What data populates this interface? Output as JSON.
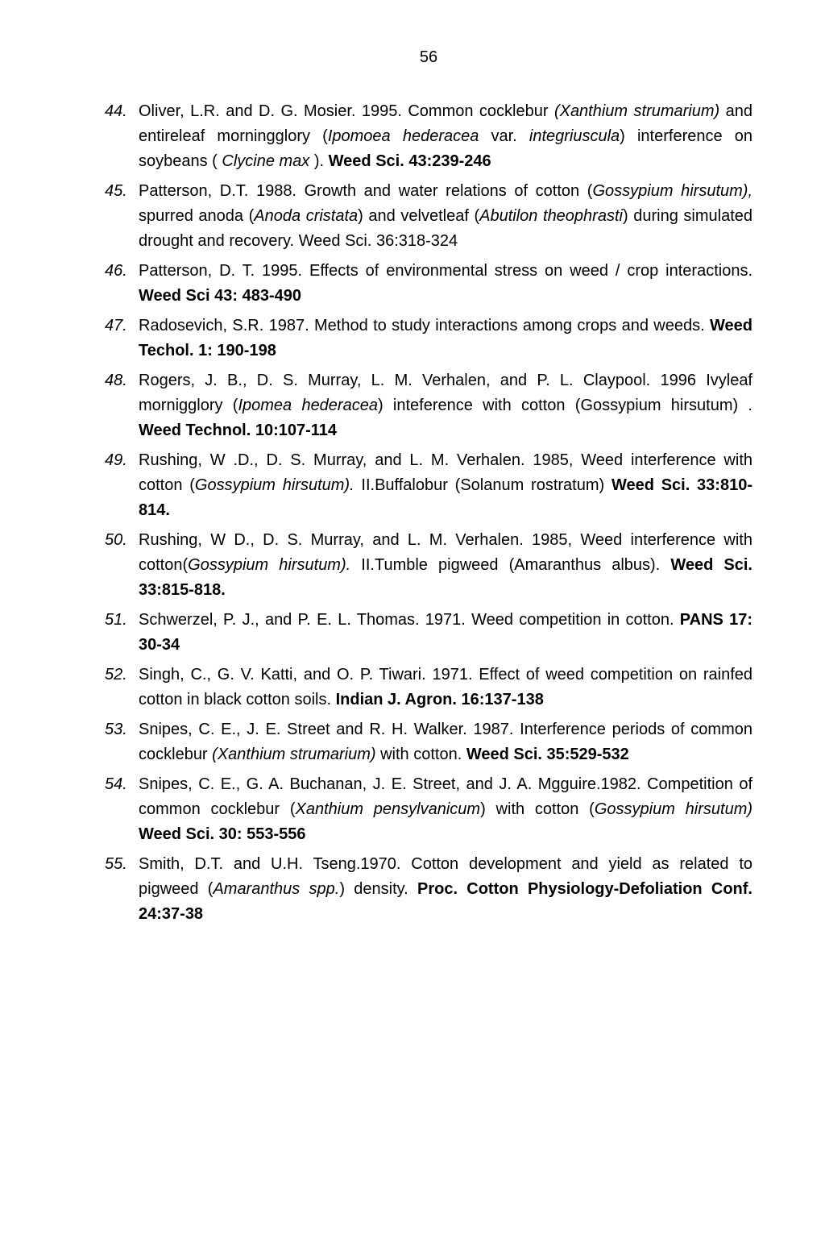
{
  "page_number": "56",
  "colors": {
    "background": "#ffffff",
    "text": "#000000"
  },
  "typography": {
    "font_family": "Arial, Helvetica, sans-serif",
    "body_fontsize": 20,
    "line_height": 1.55
  },
  "references": [
    {
      "number": "44.",
      "segments": [
        {
          "text": "Oliver, L.R. and D. G. Mosier. 1995. Common cocklebur ",
          "style": "normal"
        },
        {
          "text": "(Xanthium strumarium)",
          "style": "italic"
        },
        {
          "text": " and entireleaf morningglory (",
          "style": "normal"
        },
        {
          "text": "Ipomoea hederacea",
          "style": "italic"
        },
        {
          "text": " var. ",
          "style": "normal"
        },
        {
          "text": "integriuscula",
          "style": "italic"
        },
        {
          "text": ") interference on soybeans ( ",
          "style": "normal"
        },
        {
          "text": "Clycine max",
          "style": "italic"
        },
        {
          "text": " ). ",
          "style": "normal"
        },
        {
          "text": "Weed Sci. 43:239-246",
          "style": "bold"
        }
      ]
    },
    {
      "number": "45.",
      "segments": [
        {
          "text": "Patterson, D.T. 1988. Growth and water relations of cotton (",
          "style": "normal"
        },
        {
          "text": "Gossypium hirsutum),",
          "style": "italic"
        },
        {
          "text": " spurred anoda (",
          "style": "normal"
        },
        {
          "text": "Anoda cristata",
          "style": "italic"
        },
        {
          "text": ") and velvetleaf (",
          "style": "normal"
        },
        {
          "text": "Abutilon theophrasti",
          "style": "italic"
        },
        {
          "text": ") during simulated drought and recovery. Weed Sci. 36:318-324",
          "style": "normal"
        }
      ]
    },
    {
      "number": "46.",
      "segments": [
        {
          "text": "Patterson, D. T. 1995. Effects of environmental stress on weed / crop interactions. ",
          "style": "normal"
        },
        {
          "text": "Weed Sci 43: 483-490",
          "style": "bold"
        }
      ]
    },
    {
      "number": "47.",
      "segments": [
        {
          "text": "Radosevich, S.R. 1987. Method to study interactions among crops and weeds. ",
          "style": "normal"
        },
        {
          "text": "Weed Techol. 1: 190-198",
          "style": "bold"
        }
      ]
    },
    {
      "number": "48.",
      "segments": [
        {
          "text": "Rogers, J. B., D. S. Murray, L. M. Verhalen, and P. L. Claypool. 1996 Ivyleaf mornigglory (",
          "style": "normal"
        },
        {
          "text": "Ipomea hederacea",
          "style": "italic"
        },
        {
          "text": ") inteference with cotton (Gossypium hirsutum) . ",
          "style": "normal"
        },
        {
          "text": "Weed Technol. 10:107-114",
          "style": "bold"
        }
      ]
    },
    {
      "number": "49.",
      "segments": [
        {
          "text": "Rushing, W .D., D. S.  Murray, and L. M. Verhalen. 1985, Weed interference with cotton (",
          "style": "normal"
        },
        {
          "text": "Gossypium hirsutum).",
          "style": "italic"
        },
        {
          "text": " II.Buffalobur (Solanum rostratum) ",
          "style": "normal"
        },
        {
          "text": "Weed Sci. 33:810-814.",
          "style": "bold"
        }
      ]
    },
    {
      "number": "50.",
      "segments": [
        {
          "text": "Rushing, W D., D. S.  Murray, and L. M. Verhalen. 1985, Weed interference with cotton(",
          "style": "normal"
        },
        {
          "text": "Gossypium hirsutum).",
          "style": "italic"
        },
        {
          "text": " II.Tumble pigweed (Amaranthus albus). ",
          "style": "normal"
        },
        {
          "text": "Weed Sci. 33:815-818.",
          "style": "bold"
        }
      ]
    },
    {
      "number": "51.",
      "segments": [
        {
          "text": "Schwerzel, P. J., and P. E. L. Thomas. 1971. Weed competition in cotton. ",
          "style": "normal"
        },
        {
          "text": "PANS 17: 30-34",
          "style": "bold"
        }
      ]
    },
    {
      "number": "52.",
      "segments": [
        {
          "text": "Singh, C., G. V. Katti, and O. P. Tiwari. 1971. Effect of weed competition on rainfed cotton in black cotton soils. ",
          "style": "normal"
        },
        {
          "text": "Indian J. Agron. 16:137-138",
          "style": "bold"
        }
      ]
    },
    {
      "number": "53.",
      "segments": [
        {
          "text": "Snipes, C. E., J. E. Street and R. H. Walker. 1987. Interference periods of common cocklebur ",
          "style": "normal"
        },
        {
          "text": "(Xanthium strumarium)",
          "style": "italic"
        },
        {
          "text": " with cotton. ",
          "style": "normal"
        },
        {
          "text": "Weed Sci. 35:529-532",
          "style": "bold"
        }
      ]
    },
    {
      "number": "54.",
      "segments": [
        {
          "text": "Snipes, C. E., G. A. Buchanan, J. E. Street, and J. A. Mgguire.1982. Competition of common cocklebur (",
          "style": "normal"
        },
        {
          "text": "Xanthium pensylvanicum",
          "style": "italic"
        },
        {
          "text": ") with cotton (",
          "style": "normal"
        },
        {
          "text": "Gossypium hirsutum)",
          "style": "italic"
        },
        {
          "text": " ",
          "style": "normal"
        },
        {
          "text": "Weed Sci. 30: 553-556",
          "style": "bold"
        }
      ]
    },
    {
      "number": "55.",
      "segments": [
        {
          "text": "Smith, D.T. and U.H. Tseng.1970. Cotton development and yield as related to pigweed (",
          "style": "normal"
        },
        {
          "text": "Amaranthus spp.",
          "style": "italic"
        },
        {
          "text": ") density. ",
          "style": "normal"
        },
        {
          "text": "Proc. Cotton Physiology-Defoliation Conf. 24:37-38",
          "style": "bold"
        }
      ]
    }
  ]
}
